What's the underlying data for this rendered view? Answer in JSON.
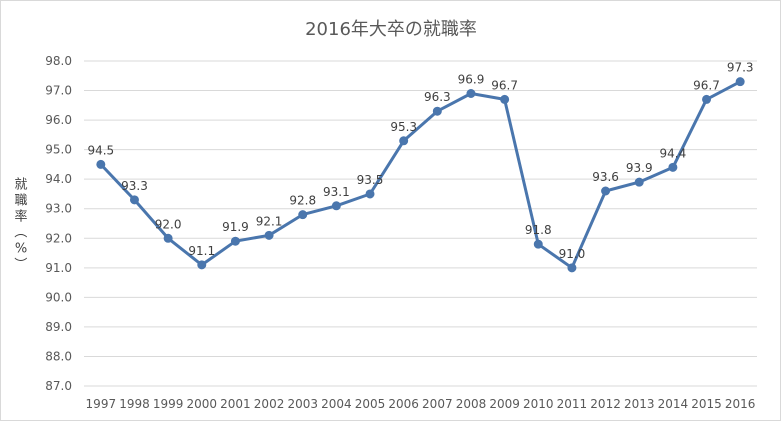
{
  "chart_data": {
    "type": "line",
    "title": "2016年大卒の就職率",
    "xlabel": "",
    "ylabel": "就職率（%）",
    "ylim": [
      87.0,
      98.0
    ],
    "ytick_step": 1.0,
    "grid": true,
    "legend": "none",
    "line_color": "#4a76ad",
    "grid_color": "#d9d9d9",
    "categories": [
      "1997",
      "1998",
      "1999",
      "2000",
      "2001",
      "2002",
      "2003",
      "2004",
      "2005",
      "2006",
      "2007",
      "2008",
      "2009",
      "2010",
      "2011",
      "2012",
      "2013",
      "2014",
      "2015",
      "2016"
    ],
    "series": [
      {
        "values": [
          94.5,
          93.3,
          92.0,
          91.1,
          91.9,
          92.1,
          92.8,
          93.1,
          93.5,
          95.3,
          96.3,
          96.9,
          96.7,
          91.8,
          91.0,
          93.6,
          93.9,
          94.4,
          96.7,
          97.3
        ]
      }
    ],
    "data_labels": [
      "94.5",
      "93.3",
      "92.0",
      "91.1",
      "91.9",
      "92.1",
      "92.8",
      "93.1",
      "93.5",
      "95.3",
      "96.3",
      "96.9",
      "96.7",
      "91.8",
      "91.0",
      "93.6",
      "93.9",
      "94.4",
      "96.7",
      "97.3"
    ]
  }
}
